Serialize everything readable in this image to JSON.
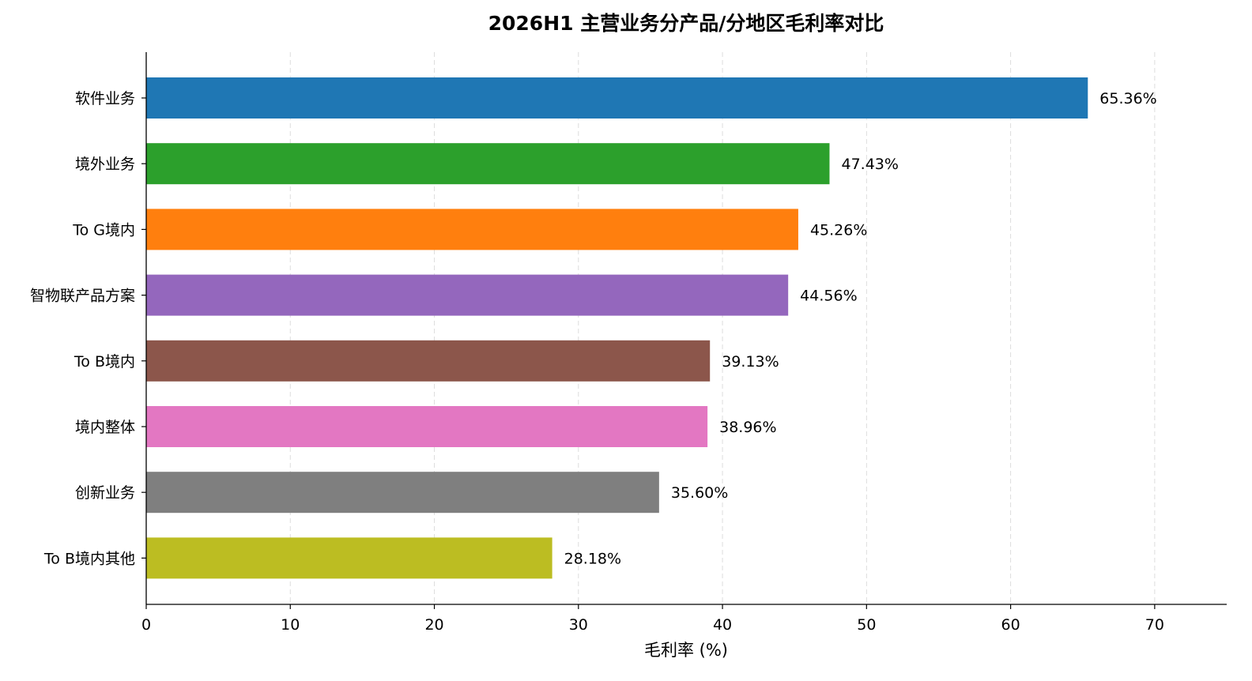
{
  "chart_data": {
    "type": "bar",
    "orientation": "horizontal",
    "title": "2026H1 主营业务分产品/分地区毛利率对比",
    "xlabel": "毛利率 (%)",
    "ylabel": "",
    "xlim": [
      0,
      75
    ],
    "xticks": [
      0,
      10,
      20,
      30,
      40,
      50,
      60,
      70
    ],
    "grid": "vertical dashed",
    "categories": [
      "软件业务",
      "境外业务",
      "To G境内",
      "智物联产品方案",
      "To B境内",
      "境内整体",
      "创新业务",
      "To B境内其他"
    ],
    "values": [
      65.36,
      47.43,
      45.26,
      44.56,
      39.13,
      38.96,
      35.6,
      28.18
    ],
    "value_labels": [
      "65.36%",
      "47.43%",
      "45.26%",
      "44.56%",
      "39.13%",
      "38.96%",
      "35.60%",
      "28.18%"
    ],
    "colors": [
      "#1f77b4",
      "#2ca02c",
      "#ff7f0e",
      "#9467bd",
      "#8c564b",
      "#e377c2",
      "#7f7f7f",
      "#bcbd22"
    ]
  }
}
